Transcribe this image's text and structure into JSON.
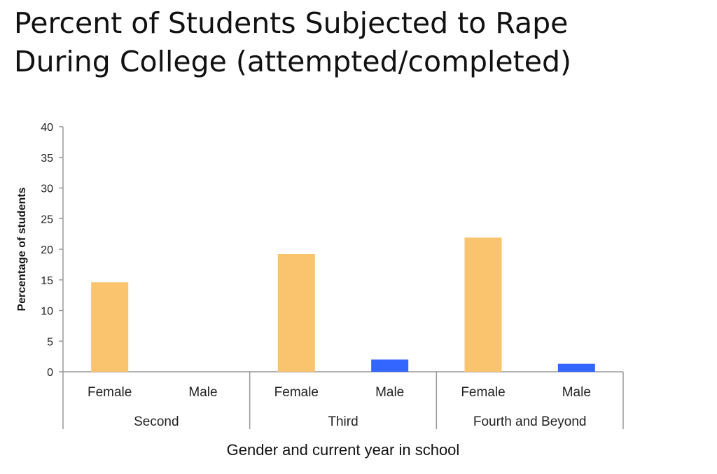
{
  "chart_data": {
    "type": "bar",
    "title": "Percent of Students Subjected to Rape\nDuring College (attempted/completed)",
    "ylabel": "Percentage of students",
    "xlabel": "Gender and current year in school",
    "ylim": [
      0,
      40
    ],
    "yticks": [
      "0",
      "5",
      "10",
      "15",
      "20",
      "25",
      "30",
      "35",
      "40"
    ],
    "groups": [
      {
        "label": "Second",
        "bars": [
          {
            "label": "Female",
            "value": 14.6,
            "color": "#FAC46E"
          },
          {
            "label": "Male",
            "value": 0,
            "color": "#3366FF"
          }
        ]
      },
      {
        "label": "Third",
        "bars": [
          {
            "label": "Female",
            "value": 19.2,
            "color": "#FAC46E"
          },
          {
            "label": "Male",
            "value": 2.0,
            "color": "#3366FF"
          }
        ]
      },
      {
        "label": "Fourth and Beyond",
        "bars": [
          {
            "label": "Female",
            "value": 21.9,
            "color": "#FAC46E"
          },
          {
            "label": "Male",
            "value": 1.3,
            "color": "#3366FF"
          }
        ]
      }
    ],
    "grid": false,
    "legend": "none"
  }
}
